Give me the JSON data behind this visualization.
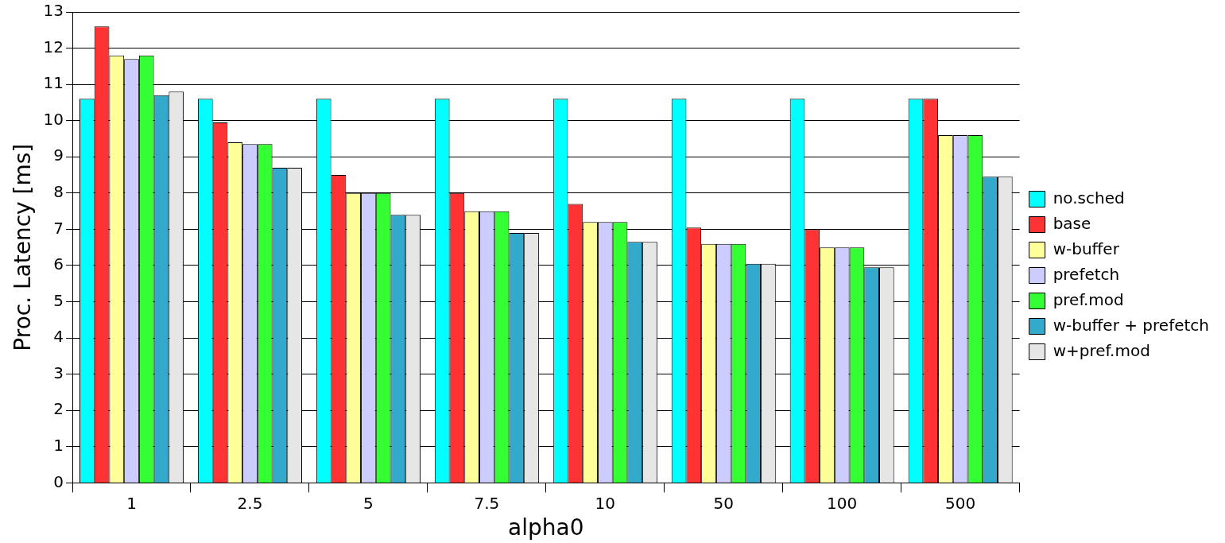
{
  "chart_data": {
    "type": "bar",
    "xlabel": "alpha0",
    "ylabel": "Proc. Latency [ms]",
    "categories": [
      "1",
      "2.5",
      "5",
      "7.5",
      "10",
      "50",
      "100",
      "500"
    ],
    "series": [
      {
        "name": "no.sched",
        "color": "#00ffff",
        "values": [
          10.6,
          10.6,
          10.6,
          10.6,
          10.6,
          10.6,
          10.6,
          10.6
        ]
      },
      {
        "name": "base",
        "color": "#ff3333",
        "values": [
          12.6,
          9.95,
          8.5,
          8.0,
          7.7,
          7.05,
          7.0,
          10.6
        ]
      },
      {
        "name": "w-buffer",
        "color": "#ffff99",
        "values": [
          11.8,
          9.4,
          8.0,
          7.5,
          7.2,
          6.6,
          6.5,
          9.6
        ]
      },
      {
        "name": "prefetch",
        "color": "#ccccff",
        "values": [
          11.7,
          9.35,
          8.0,
          7.5,
          7.2,
          6.6,
          6.5,
          9.6
        ]
      },
      {
        "name": "pref.mod",
        "color": "#33ff33",
        "values": [
          11.8,
          9.35,
          8.0,
          7.5,
          7.2,
          6.6,
          6.5,
          9.6
        ]
      },
      {
        "name": "w-buffer + prefetch",
        "color": "#33aacc",
        "values": [
          10.7,
          8.7,
          7.4,
          6.9,
          6.65,
          6.05,
          5.95,
          8.45
        ]
      },
      {
        "name": "w+pref.mod",
        "color": "#e6e6e6",
        "values": [
          10.8,
          8.7,
          7.4,
          6.9,
          6.65,
          6.05,
          5.95,
          8.45
        ]
      }
    ],
    "ylim": [
      0,
      13
    ],
    "yticks": [
      0,
      1,
      2,
      3,
      4,
      5,
      6,
      7,
      8,
      9,
      10,
      11,
      12,
      13
    ],
    "grid": "y",
    "legend": "right"
  }
}
